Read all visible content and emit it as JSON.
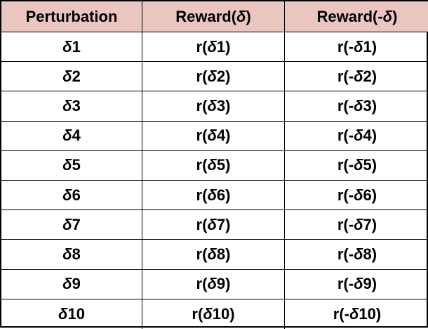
{
  "headers": [
    {
      "text": "Perturbation"
    },
    {
      "text": "Reward(",
      "sym": "δ",
      "after": ")"
    },
    {
      "text": "Reward(-",
      "sym": "δ",
      "after": ")"
    }
  ],
  "rows": [
    {
      "p": "1",
      "r": "1",
      "rn": "1"
    },
    {
      "p": "2",
      "r": "2",
      "rn": "2"
    },
    {
      "p": "3",
      "r": "3",
      "rn": "3"
    },
    {
      "p": "4",
      "r": "4",
      "rn": "4"
    },
    {
      "p": "5",
      "r": "5",
      "rn": "5"
    },
    {
      "p": "6",
      "r": "6",
      "rn": "6"
    },
    {
      "p": "7",
      "r": "7",
      "rn": "7"
    },
    {
      "p": "8",
      "r": "8",
      "rn": "8"
    },
    {
      "p": "9",
      "r": "9",
      "rn": "9"
    },
    {
      "p": "10",
      "r": "10",
      "rn": "10"
    }
  ],
  "symbols": {
    "delta": "δ",
    "r_open": "r(",
    "r_neg_open": "r(-",
    "close": ")"
  },
  "colors": {
    "header_bg": "#ebc6c0",
    "border": "#000000"
  }
}
